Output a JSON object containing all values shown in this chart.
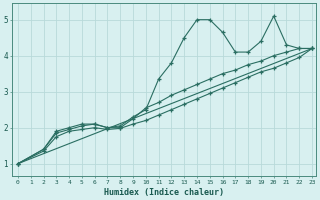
{
  "xlabel": "Humidex (Indice chaleur)",
  "bg_color": "#d8f0f0",
  "grid_color": "#b8dada",
  "line_color": "#2a6e62",
  "xlim": [
    -0.5,
    23.3
  ],
  "ylim": [
    0.65,
    5.45
  ],
  "line1_x": [
    0,
    2,
    3,
    4,
    5,
    6,
    7,
    8,
    9,
    10,
    11,
    12,
    13,
    14,
    15,
    16,
    17,
    18,
    19,
    20,
    21,
    22,
    23
  ],
  "line1_y": [
    1.0,
    1.4,
    1.9,
    2.0,
    2.1,
    2.1,
    2.0,
    2.05,
    2.3,
    2.5,
    3.35,
    3.8,
    4.5,
    5.0,
    5.0,
    4.65,
    4.1,
    4.1,
    4.4,
    5.1,
    4.3,
    4.2,
    4.2
  ],
  "line2_x": [
    0,
    2,
    3,
    4,
    5,
    6,
    7,
    8,
    9,
    10,
    11,
    12,
    13,
    14,
    15,
    16,
    17,
    18,
    19,
    20,
    21,
    22,
    23
  ],
  "line2_y": [
    1.0,
    1.4,
    1.85,
    1.95,
    2.05,
    2.1,
    2.0,
    2.0,
    2.25,
    2.55,
    2.7,
    2.9,
    3.05,
    3.2,
    3.35,
    3.5,
    3.6,
    3.75,
    3.85,
    4.0,
    4.1,
    4.2,
    4.2
  ],
  "line3_x": [
    0,
    2,
    3,
    4,
    5,
    6,
    7,
    8,
    9,
    10,
    11,
    12,
    13,
    14,
    15,
    16,
    17,
    18,
    19,
    20,
    21,
    22,
    23
  ],
  "line3_y": [
    1.0,
    1.35,
    1.75,
    1.9,
    1.95,
    2.0,
    1.95,
    1.98,
    2.1,
    2.2,
    2.35,
    2.5,
    2.65,
    2.8,
    2.95,
    3.1,
    3.25,
    3.4,
    3.55,
    3.65,
    3.8,
    3.95,
    4.2
  ],
  "line4_x": [
    0,
    23
  ],
  "line4_y": [
    1.0,
    4.2
  ]
}
